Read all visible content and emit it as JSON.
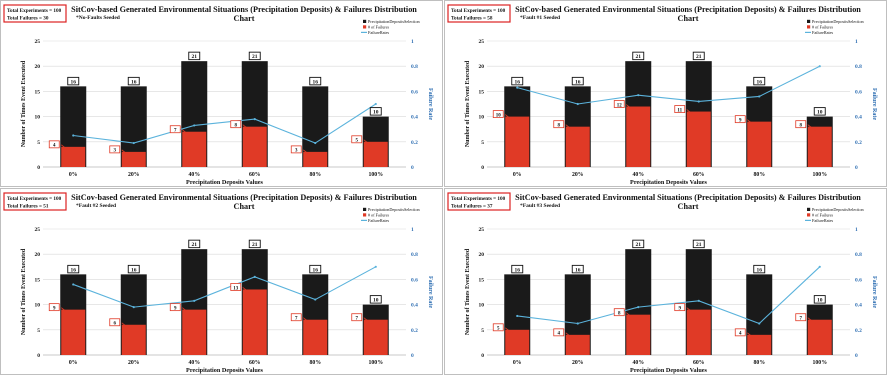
{
  "chart_data": [
    {
      "type": "bar",
      "title": "SitCov-based Generated Environmental Situations (Precipitation Deposits) & Failures Distribution Chart",
      "subtitle": "*No-Faults Seeded",
      "info": [
        "Total Experiments = 100",
        "Total Failures = 30"
      ],
      "xlabel": "Precipitation Deposits Values",
      "ylabel": "Number of Times Event Executed",
      "y2label": "Failure Rate",
      "categories": [
        "0%",
        "20%",
        "40%",
        "60%",
        "80%",
        "100%"
      ],
      "ylim": [
        0,
        25
      ],
      "yticks": [
        0,
        5,
        10,
        15,
        20,
        25
      ],
      "y2lim": [
        0,
        1
      ],
      "y2ticks": [
        0,
        0.2,
        0.4,
        0.6,
        0.8,
        1
      ],
      "series": [
        {
          "name": "PrecipitationDepositsSelection",
          "kind": "bar",
          "color": "#1a1a1a",
          "values": [
            16,
            16,
            21,
            21,
            16,
            10
          ],
          "labels": [
            "16",
            "16",
            "21",
            "21",
            "16",
            "10"
          ]
        },
        {
          "name": "# of Failures",
          "kind": "bar",
          "color": "#e03a26",
          "values": [
            4,
            3,
            7,
            8,
            3,
            5
          ],
          "labels": [
            "4",
            "3",
            "7",
            "8",
            "3",
            "5"
          ]
        },
        {
          "name": "FailureRates",
          "kind": "line",
          "axis": "right",
          "color": "#5bb3dc",
          "values": [
            0.25,
            0.19,
            0.33,
            0.38,
            0.19,
            0.5
          ]
        }
      ],
      "legend": "top-right"
    },
    {
      "type": "bar",
      "title": "SitCov-based Generated Environmental Situations (Precipitation Deposits) & Failures Distribution Chart",
      "subtitle": "*Fault #1 Seeded",
      "info": [
        "Total Experiments = 100",
        "Total Failures = 58"
      ],
      "xlabel": "Precipitation Deposits Values",
      "ylabel": "Number of Times Event Executed",
      "y2label": "Failure Rate",
      "categories": [
        "0%",
        "20%",
        "40%",
        "60%",
        "80%",
        "100%"
      ],
      "ylim": [
        0,
        25
      ],
      "yticks": [
        0,
        5,
        10,
        15,
        20,
        25
      ],
      "y2lim": [
        0,
        1
      ],
      "y2ticks": [
        0,
        0.2,
        0.4,
        0.6,
        0.8,
        1
      ],
      "series": [
        {
          "name": "PrecipitationDepositsSelection",
          "kind": "bar",
          "color": "#1a1a1a",
          "values": [
            16,
            16,
            21,
            21,
            16,
            10
          ],
          "labels": [
            "16",
            "16",
            "21",
            "21",
            "16",
            "10"
          ]
        },
        {
          "name": "# of Failures",
          "kind": "bar",
          "color": "#e03a26",
          "values": [
            10,
            8,
            12,
            11,
            9,
            8
          ],
          "labels": [
            "10",
            "8",
            "12",
            "11",
            "9",
            "8"
          ]
        },
        {
          "name": "FailureRates",
          "kind": "line",
          "axis": "right",
          "color": "#5bb3dc",
          "values": [
            0.63,
            0.5,
            0.57,
            0.52,
            0.56,
            0.8
          ]
        }
      ],
      "legend": "top-right"
    },
    {
      "type": "bar",
      "title": "SitCov-based Generated Environmental Situations (Precipitation Deposits) & Failures Distribution Chart",
      "subtitle": "*Fault #2 Seeded",
      "info": [
        "Total Experiments = 100",
        "Total Failures = 51"
      ],
      "xlabel": "Precipitation Deposits Values",
      "ylabel": "Number of Times Event Executed",
      "y2label": "Failure Rate",
      "categories": [
        "0%",
        "20%",
        "40%",
        "60%",
        "80%",
        "100%"
      ],
      "ylim": [
        0,
        25
      ],
      "yticks": [
        0,
        5,
        10,
        15,
        20,
        25
      ],
      "y2lim": [
        0,
        1
      ],
      "y2ticks": [
        0,
        0.2,
        0.4,
        0.6,
        0.8,
        1
      ],
      "series": [
        {
          "name": "PrecipitationDepositsSelection",
          "kind": "bar",
          "color": "#1a1a1a",
          "values": [
            16,
            16,
            21,
            21,
            16,
            10
          ],
          "labels": [
            "16",
            "16",
            "21",
            "21",
            "16",
            "10"
          ]
        },
        {
          "name": "# of Failures",
          "kind": "bar",
          "color": "#e03a26",
          "values": [
            9,
            6,
            9,
            13,
            7,
            7
          ],
          "labels": [
            "9",
            "6",
            "9",
            "13",
            "7",
            "7"
          ]
        },
        {
          "name": "FailureRates",
          "kind": "line",
          "axis": "right",
          "color": "#5bb3dc",
          "values": [
            0.56,
            0.38,
            0.43,
            0.62,
            0.44,
            0.7
          ]
        }
      ],
      "legend": "top-right"
    },
    {
      "type": "bar",
      "title": "SitCov-based Generated Environmental Situations (Precipitation Deposits) & Failures Distribution Chart",
      "subtitle": "*Fault #3 Seeded",
      "info": [
        "Total Experiments = 100",
        "Total Failures = 37"
      ],
      "xlabel": "Precipitation Deposits Values",
      "ylabel": "Number of Times Event Executed",
      "y2label": "Failure Rate",
      "categories": [
        "0%",
        "20%",
        "40%",
        "60%",
        "80%",
        "100%"
      ],
      "ylim": [
        0,
        25
      ],
      "yticks": [
        0,
        5,
        10,
        15,
        20,
        25
      ],
      "y2lim": [
        0,
        1
      ],
      "y2ticks": [
        0,
        0.2,
        0.4,
        0.6,
        0.8,
        1
      ],
      "series": [
        {
          "name": "PrecipitationDepositsSelection",
          "kind": "bar",
          "color": "#1a1a1a",
          "values": [
            16,
            16,
            21,
            21,
            16,
            10
          ],
          "labels": [
            "16",
            "16",
            "21",
            "21",
            "16",
            "10"
          ]
        },
        {
          "name": "# of Failures",
          "kind": "bar",
          "color": "#e03a26",
          "values": [
            5,
            4,
            8,
            9,
            4,
            7
          ],
          "labels": [
            "5",
            "4",
            "8",
            "9",
            "4",
            "7"
          ]
        },
        {
          "name": "FailureRates",
          "kind": "line",
          "axis": "right",
          "color": "#5bb3dc",
          "values": [
            0.31,
            0.25,
            0.38,
            0.43,
            0.25,
            0.7
          ]
        }
      ],
      "legend": "top-right"
    }
  ]
}
